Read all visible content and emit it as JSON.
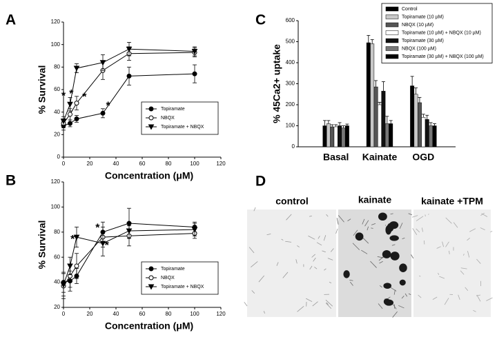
{
  "chart_data": [
    {
      "type": "line",
      "panel": "A",
      "xlabel": "Concentration (μM)",
      "ylabel": "% Survival",
      "x": [
        0,
        5,
        10,
        30,
        50,
        100
      ],
      "xlim": [
        0,
        120
      ],
      "xticks": [
        0,
        20,
        40,
        60,
        80,
        100,
        120
      ],
      "ylim": [
        0,
        120
      ],
      "yticks": [
        0,
        20,
        40,
        60,
        80,
        100,
        120
      ],
      "legend": "lower right",
      "series": [
        {
          "name": "Topiramate",
          "color": "#000000",
          "marker": "filled-circle",
          "values": [
            28,
            30,
            34,
            39,
            72,
            74
          ],
          "errors": [
            4,
            3,
            3,
            4,
            8,
            8
          ]
        },
        {
          "name": "NBQX",
          "color": "#000000",
          "marker": "open-circle",
          "values": [
            30,
            38,
            48,
            77,
            92,
            93
          ],
          "errors": [
            4,
            5,
            6,
            8,
            6,
            4
          ]
        },
        {
          "name": "Topiramate + NBQX",
          "color": "#000000",
          "marker": "triangle-down",
          "values": [
            32,
            47,
            79,
            84,
            96,
            94
          ],
          "errors": [
            4,
            6,
            4,
            7,
            6,
            4
          ]
        }
      ],
      "annotations": [
        {
          "text": "*",
          "x": 0,
          "y": 54
        },
        {
          "text": "*",
          "x": 6,
          "y": 56
        },
        {
          "text": "*",
          "x": 16,
          "y": 53
        },
        {
          "text": "*",
          "x": 34,
          "y": 45
        }
      ]
    },
    {
      "type": "line",
      "panel": "B",
      "xlabel": "Concentration (μM)",
      "ylabel": "% Survival",
      "x": [
        0,
        5,
        10,
        30,
        50,
        100
      ],
      "xlim": [
        0,
        120
      ],
      "xticks": [
        0,
        20,
        40,
        60,
        80,
        100,
        120
      ],
      "ylim": [
        20,
        120
      ],
      "yticks": [
        20,
        40,
        60,
        80,
        100,
        120
      ],
      "legend": "lower right",
      "series": [
        {
          "name": "Topiramate",
          "color": "#000000",
          "marker": "filled-circle",
          "values": [
            40,
            41,
            45,
            80,
            87,
            84
          ],
          "errors": [
            8,
            8,
            6,
            8,
            12,
            4
          ]
        },
        {
          "name": "NBQX",
          "color": "#000000",
          "marker": "open-circle",
          "values": [
            37,
            45,
            53,
            76,
            77,
            79
          ],
          "errors": [
            10,
            9,
            10,
            8,
            8,
            4
          ]
        },
        {
          "name": "Topiramate + NBQX",
          "color": "#000000",
          "marker": "triangle-down",
          "values": [
            38,
            53,
            76,
            71,
            81,
            82
          ],
          "errors": [
            9,
            7,
            8,
            10,
            6,
            5
          ]
        }
      ],
      "annotations": [
        {
          "text": "*",
          "x": 7,
          "y": 74
        },
        {
          "text": "*",
          "x": 26,
          "y": 83
        },
        {
          "text": "*",
          "x": 33,
          "y": 69
        }
      ]
    },
    {
      "type": "bar",
      "panel": "C",
      "ylabel": "% 45Ca2+ uptake",
      "categories": [
        "Basal",
        "Kainate",
        "OGD"
      ],
      "ylim": [
        0,
        600
      ],
      "yticks": [
        0,
        100,
        200,
        300,
        400,
        500,
        600
      ],
      "legend": "upper right",
      "series": [
        {
          "name": "Control",
          "color": "#000000",
          "values": [
            100,
            495,
            290
          ],
          "errors": [
            25,
            35,
            45
          ]
        },
        {
          "name": "Topiramate (10 µM)",
          "color": "#c8c8c8",
          "values": [
            110,
            490,
            250
          ],
          "errors": [
            15,
            20,
            30
          ]
        },
        {
          "name": "NBQX (10 µM)",
          "color": "#555555",
          "values": [
            95,
            285,
            210
          ],
          "errors": [
            10,
            30,
            25
          ]
        },
        {
          "name": "Topiramate (10 µM) + NBQX (10 µM)",
          "color": "#ffffff",
          "values": [
            95,
            200,
            140
          ],
          "errors": [
            10,
            12,
            15
          ]
        },
        {
          "name": "Topiramate (30 µM)",
          "color": "#111111",
          "values": [
            100,
            265,
            130
          ],
          "errors": [
            15,
            45,
            20
          ]
        },
        {
          "name": "NBQX (100 µM)",
          "color": "#777777",
          "values": [
            90,
            110,
            100
          ],
          "errors": [
            10,
            35,
            15
          ]
        },
        {
          "name": "Topiramate (30 µM) + NBQX (100 µM)",
          "color": "#000000",
          "values": [
            100,
            110,
            100
          ],
          "errors": [
            8,
            15,
            10
          ]
        }
      ]
    }
  ],
  "micrographs": {
    "panel": "D",
    "labels": [
      "control",
      "kainate",
      "kainate +TPM"
    ]
  }
}
